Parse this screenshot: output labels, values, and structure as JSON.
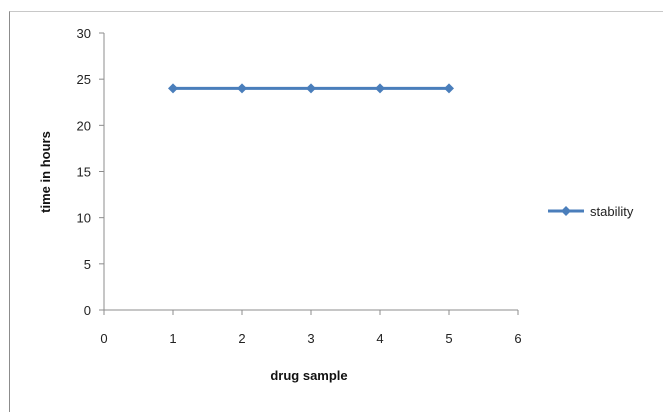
{
  "chart_data": {
    "type": "line",
    "title": "",
    "xlabel": "drug sample",
    "ylabel": "time in hours",
    "xlim": [
      0,
      6
    ],
    "ylim": [
      0,
      30
    ],
    "x_ticks": [
      0,
      1,
      2,
      3,
      4,
      5,
      6
    ],
    "y_ticks": [
      0,
      5,
      10,
      15,
      20,
      25,
      30
    ],
    "grid": false,
    "legend_position": "right",
    "series": [
      {
        "name": "stability",
        "color": "#4a7ebb",
        "marker": "diamond",
        "x": [
          1,
          2,
          3,
          4,
          5
        ],
        "y": [
          24,
          24,
          24,
          24,
          24
        ]
      }
    ]
  }
}
